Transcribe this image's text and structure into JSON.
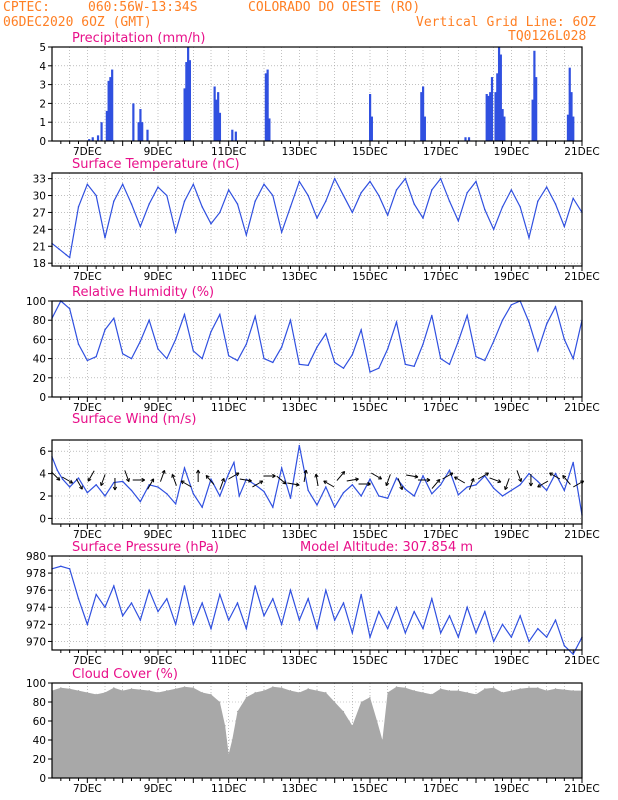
{
  "header": {
    "source": "CPTEC:",
    "coords": "060:56W-13:34S",
    "station": "COLORADO DO OESTE (RO)",
    "run": "06DEC2020 6OZ (GMT)",
    "grid_note": "Vertical Grid Line: 6OZ",
    "code": "TQ0126L028"
  },
  "colors": {
    "header": "#ff7f24",
    "title": "#e8108a",
    "line": "#3050e0",
    "cloud": "#a8a8a8",
    "grid": "#9a9a9a"
  },
  "chart_data": [
    {
      "type": "bar",
      "title": "Precipitation (mm/h)",
      "x_tick_labels": [
        "7DEC",
        "9DEC",
        "11DEC",
        "13DEC",
        "15DEC",
        "17DEC",
        "19DEC",
        "21DEC"
      ],
      "ylim": [
        0,
        5
      ],
      "y_ticks": [
        0,
        1,
        2,
        3,
        4,
        5
      ],
      "series_x_days": [
        7.05,
        7.15,
        7.3,
        7.4,
        7.55,
        7.6,
        7.65,
        7.7,
        8.3,
        8.45,
        8.5,
        8.55,
        8.7,
        9.75,
        9.8,
        9.85,
        9.9,
        10.6,
        10.65,
        10.7,
        10.75,
        11.1,
        11.2,
        12.05,
        12.1,
        12.15,
        15.0,
        15.05,
        16.45,
        16.5,
        16.55,
        17.7,
        17.8,
        18.3,
        18.35,
        18.4,
        18.45,
        18.55,
        18.6,
        18.65,
        18.7,
        18.75,
        18.8,
        19.6,
        19.65,
        19.7,
        20.6,
        20.65,
        20.7,
        20.75
      ],
      "series_values": [
        0.1,
        0.2,
        0.3,
        1.0,
        1.6,
        3.2,
        3.4,
        3.8,
        2.0,
        1.0,
        1.7,
        1.0,
        0.6,
        2.8,
        4.2,
        5.0,
        4.3,
        2.9,
        2.2,
        2.6,
        1.5,
        0.6,
        0.5,
        3.6,
        3.8,
        1.2,
        2.5,
        1.3,
        2.6,
        2.9,
        1.3,
        0.2,
        0.2,
        2.5,
        2.4,
        2.6,
        3.4,
        2.6,
        3.6,
        5.0,
        4.6,
        1.7,
        1.3,
        2.2,
        4.8,
        3.4,
        1.4,
        3.9,
        2.6,
        1.3
      ]
    },
    {
      "type": "line",
      "title": "Surface Temperature (nC)",
      "x_tick_labels": [
        "7DEC",
        "9DEC",
        "11DEC",
        "13DEC",
        "15DEC",
        "17DEC",
        "19DEC",
        "21DEC"
      ],
      "ylim": [
        17.5,
        34
      ],
      "y_ticks": [
        18,
        21,
        24,
        27,
        30,
        33
      ],
      "x_days": [
        6.0,
        6.2,
        6.4,
        6.5,
        6.75,
        7.0,
        7.25,
        7.5,
        7.75,
        8.0,
        8.25,
        8.5,
        8.75,
        9.0,
        9.25,
        9.5,
        9.75,
        10.0,
        10.25,
        10.5,
        10.75,
        11.0,
        11.25,
        11.5,
        11.75,
        12.0,
        12.25,
        12.5,
        12.75,
        13.0,
        13.25,
        13.5,
        13.75,
        14.0,
        14.25,
        14.5,
        14.75,
        15.0,
        15.25,
        15.5,
        15.75,
        16.0,
        16.25,
        16.5,
        16.75,
        17.0,
        17.25,
        17.5,
        17.75,
        18.0,
        18.25,
        18.5,
        18.75,
        19.0,
        19.25,
        19.5,
        19.75,
        20.0,
        20.25,
        20.5,
        20.75,
        21.0
      ],
      "values": [
        21.5,
        20.5,
        19.5,
        19.0,
        28.0,
        32.0,
        30.0,
        22.5,
        29.0,
        32.0,
        28.5,
        24.5,
        28.5,
        31.5,
        30.0,
        23.5,
        29.0,
        32.0,
        28.0,
        25.0,
        27.0,
        31.0,
        28.5,
        23.0,
        29.0,
        32.0,
        30.0,
        23.5,
        28.0,
        32.5,
        30.0,
        26.0,
        29.0,
        33.0,
        30.0,
        27.0,
        30.5,
        32.5,
        30.0,
        26.5,
        31.0,
        33.0,
        28.5,
        26.0,
        31.0,
        33.0,
        29.0,
        25.5,
        30.5,
        32.5,
        27.5,
        24.0,
        28.0,
        31.0,
        28.0,
        22.5,
        29.0,
        31.5,
        28.5,
        24.5,
        29.5,
        27.0
      ]
    },
    {
      "type": "line",
      "title": "Relative Humidity (%)",
      "x_tick_labels": [
        "7DEC",
        "9DEC",
        "11DEC",
        "13DEC",
        "15DEC",
        "17DEC",
        "19DEC",
        "21DEC"
      ],
      "ylim": [
        0,
        100
      ],
      "y_ticks": [
        0,
        20,
        40,
        60,
        80,
        100
      ],
      "x_days": [
        6.0,
        6.25,
        6.5,
        6.75,
        7.0,
        7.25,
        7.5,
        7.75,
        8.0,
        8.25,
        8.5,
        8.75,
        9.0,
        9.25,
        9.5,
        9.75,
        10.0,
        10.25,
        10.5,
        10.75,
        11.0,
        11.25,
        11.5,
        11.75,
        12.0,
        12.25,
        12.5,
        12.75,
        13.0,
        13.25,
        13.5,
        13.75,
        14.0,
        14.25,
        14.5,
        14.75,
        15.0,
        15.25,
        15.5,
        15.75,
        16.0,
        16.25,
        16.5,
        16.75,
        17.0,
        17.25,
        17.5,
        17.75,
        18.0,
        18.25,
        18.5,
        18.75,
        19.0,
        19.25,
        19.5,
        19.75,
        20.0,
        20.25,
        20.5,
        20.75,
        21.0
      ],
      "values": [
        82,
        100,
        92,
        55,
        38,
        42,
        70,
        82,
        45,
        40,
        58,
        80,
        50,
        40,
        60,
        86,
        48,
        40,
        68,
        86,
        43,
        38,
        55,
        84,
        40,
        36,
        52,
        80,
        34,
        33,
        52,
        66,
        36,
        30,
        44,
        70,
        26,
        30,
        50,
        78,
        34,
        32,
        55,
        85,
        40,
        34,
        58,
        85,
        42,
        38,
        58,
        80,
        96,
        100,
        78,
        48,
        76,
        94,
        60,
        40,
        80
      ]
    },
    {
      "type": "line",
      "title": "Surface Wind (m/s)",
      "x_tick_labels": [
        "7DEC",
        "9DEC",
        "11DEC",
        "13DEC",
        "15DEC",
        "17DEC",
        "19DEC",
        "21DEC"
      ],
      "ylim": [
        -0.5,
        7
      ],
      "y_ticks": [
        0,
        2,
        4,
        6
      ],
      "x_days": [
        6.0,
        6.15,
        6.3,
        6.5,
        6.75,
        7.0,
        7.25,
        7.5,
        7.75,
        8.0,
        8.25,
        8.5,
        8.75,
        9.0,
        9.25,
        9.5,
        9.75,
        10.0,
        10.25,
        10.5,
        10.75,
        11.0,
        11.15,
        11.3,
        11.5,
        11.75,
        12.0,
        12.25,
        12.5,
        12.75,
        13.0,
        13.25,
        13.5,
        13.75,
        14.0,
        14.25,
        14.5,
        14.75,
        15.0,
        15.25,
        15.5,
        15.75,
        16.0,
        16.25,
        16.5,
        16.75,
        17.0,
        17.25,
        17.5,
        17.75,
        18.0,
        18.25,
        18.5,
        18.75,
        19.0,
        19.25,
        19.5,
        19.75,
        20.0,
        20.25,
        20.5,
        20.75,
        21.0
      ],
      "values": [
        5.5,
        4.3,
        3.5,
        2.8,
        3.6,
        2.3,
        3.0,
        2.0,
        3.2,
        3.3,
        2.5,
        1.5,
        3.0,
        2.8,
        2.2,
        1.3,
        4.5,
        2.2,
        1.0,
        3.5,
        2.0,
        4.0,
        5.0,
        2.0,
        3.5,
        3.0,
        2.4,
        1.0,
        4.5,
        1.8,
        6.5,
        2.5,
        1.2,
        2.8,
        1.0,
        2.3,
        3.0,
        2.0,
        3.5,
        2.0,
        1.8,
        3.6,
        2.6,
        2.0,
        3.8,
        2.2,
        3.0,
        4.3,
        2.1,
        2.8,
        3.0,
        3.8,
        2.7,
        2.0,
        2.5,
        3.0,
        4.0,
        3.3,
        2.5,
        4.0,
        2.5,
        5.0,
        0.3
      ],
      "wind_vectors_deg": [
        135,
        120,
        150,
        210,
        200,
        180,
        160,
        90,
        30,
        20,
        340,
        300,
        0,
        320,
        20,
        60,
        100,
        60,
        90,
        130,
        100,
        10,
        350,
        300,
        40,
        80,
        90,
        120,
        200,
        160,
        100,
        90,
        40,
        60,
        300,
        20,
        60,
        110,
        200,
        160,
        180,
        240,
        300,
        320,
        60
      ]
    },
    {
      "type": "line",
      "title": "Surface Pressure (hPa)",
      "annotation": "Model Altitude: 307.854  m",
      "x_tick_labels": [
        "7DEC",
        "9DEC",
        "11DEC",
        "13DEC",
        "15DEC",
        "17DEC",
        "19DEC",
        "21DEC"
      ],
      "ylim": [
        969,
        980
      ],
      "y_ticks": [
        970,
        972,
        974,
        976,
        978,
        980
      ],
      "x_days": [
        6.0,
        6.25,
        6.5,
        6.75,
        7.0,
        7.25,
        7.5,
        7.75,
        8.0,
        8.25,
        8.5,
        8.75,
        9.0,
        9.25,
        9.5,
        9.75,
        10.0,
        10.25,
        10.5,
        10.75,
        11.0,
        11.25,
        11.5,
        11.75,
        12.0,
        12.25,
        12.5,
        12.75,
        13.0,
        13.25,
        13.5,
        13.75,
        14.0,
        14.25,
        14.5,
        14.75,
        15.0,
        15.25,
        15.5,
        15.75,
        16.0,
        16.25,
        16.5,
        16.75,
        17.0,
        17.25,
        17.5,
        17.75,
        18.0,
        18.25,
        18.5,
        18.75,
        19.0,
        19.25,
        19.5,
        19.75,
        20.0,
        20.25,
        20.5,
        20.75,
        21.0
      ],
      "values": [
        978.5,
        978.8,
        978.5,
        975.0,
        972.0,
        975.5,
        974.0,
        976.5,
        973.0,
        974.5,
        972.5,
        976.0,
        973.5,
        975.0,
        972.0,
        976.5,
        972.0,
        974.5,
        971.5,
        975.5,
        972.5,
        974.5,
        971.5,
        976.5,
        973.0,
        975.0,
        972.0,
        976.0,
        972.5,
        975.0,
        971.5,
        976.0,
        972.5,
        974.5,
        971.0,
        975.5,
        970.5,
        973.5,
        971.5,
        974.0,
        971.0,
        973.5,
        971.5,
        975.0,
        971.0,
        973.0,
        970.5,
        974.0,
        971.0,
        973.5,
        970.0,
        972.0,
        970.5,
        973.0,
        970.0,
        971.5,
        970.5,
        972.5,
        969.5,
        968.5,
        970.5
      ]
    },
    {
      "type": "area",
      "title": "Cloud Cover (%)",
      "x_tick_labels": [
        "7DEC",
        "9DEC",
        "11DEC",
        "13DEC",
        "15DEC",
        "17DEC",
        "19DEC",
        "21DEC"
      ],
      "ylim": [
        0,
        100
      ],
      "y_ticks": [
        0,
        20,
        40,
        60,
        80,
        100
      ],
      "x_days": [
        6.0,
        6.25,
        6.5,
        6.75,
        7.0,
        7.25,
        7.5,
        7.75,
        8.0,
        8.25,
        8.5,
        8.75,
        9.0,
        9.25,
        9.5,
        9.75,
        10.0,
        10.25,
        10.5,
        10.75,
        10.9,
        11.0,
        11.1,
        11.25,
        11.5,
        11.75,
        12.0,
        12.25,
        12.5,
        12.75,
        13.0,
        13.25,
        13.5,
        13.75,
        14.0,
        14.25,
        14.5,
        14.75,
        15.0,
        15.2,
        15.35,
        15.5,
        15.75,
        16.0,
        16.25,
        16.5,
        16.75,
        17.0,
        17.25,
        17.5,
        17.75,
        18.0,
        18.25,
        18.5,
        18.75,
        19.0,
        19.25,
        19.5,
        19.75,
        20.0,
        20.25,
        20.5,
        20.75,
        21.0
      ],
      "values": [
        92,
        95,
        94,
        92,
        90,
        88,
        90,
        95,
        92,
        94,
        93,
        92,
        90,
        92,
        94,
        96,
        95,
        90,
        88,
        80,
        55,
        25,
        40,
        70,
        85,
        90,
        92,
        96,
        95,
        92,
        90,
        94,
        92,
        90,
        80,
        70,
        55,
        80,
        85,
        60,
        40,
        90,
        96,
        95,
        92,
        90,
        88,
        94,
        92,
        92,
        90,
        88,
        94,
        95,
        90,
        92,
        94,
        95,
        95,
        92,
        94,
        93,
        92,
        92
      ]
    }
  ]
}
